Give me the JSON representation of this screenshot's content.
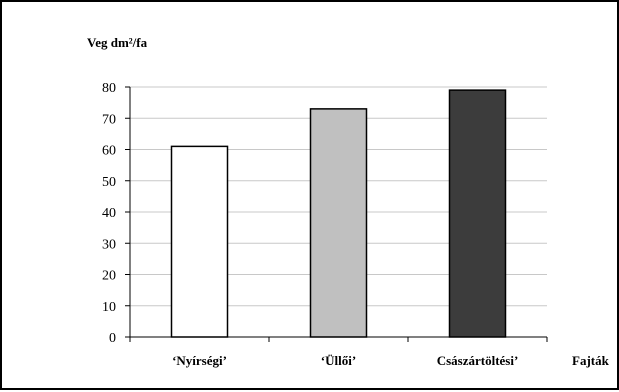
{
  "chart_data": {
    "type": "bar",
    "ylabel": "Veg dm²/fa",
    "xlabel": "Fajták",
    "categories": [
      "‘Nyírségi’",
      "‘Üllői’",
      "Császártöltési’"
    ],
    "values": [
      61,
      73,
      79
    ],
    "colors": [
      "#ffffff",
      "#c0c0c0",
      "#3c3c3c"
    ],
    "ylim": [
      0,
      80
    ],
    "yticks": [
      "0",
      "10",
      "20",
      "30",
      "40",
      "50",
      "60",
      "70",
      "80"
    ],
    "grid": true,
    "legend": "none"
  }
}
